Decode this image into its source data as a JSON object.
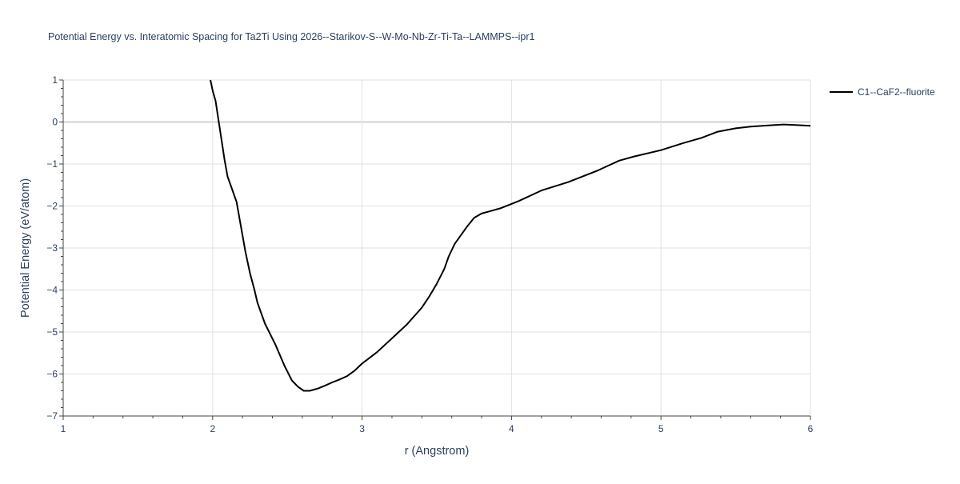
{
  "chart_data": {
    "type": "line",
    "title": "Potential Energy vs. Interatomic Spacing for Ta2Ti Using 2026--Starikov-S--W-Mo-Nb-Zr-Ti-Ta--LAMMPS--ipr1",
    "xlabel": "r (Angstrom)",
    "ylabel": "Potential Energy (eV/atom)",
    "xlim": [
      1,
      6
    ],
    "ylim": [
      -7,
      1
    ],
    "x_ticks": [
      1,
      2,
      3,
      4,
      5,
      6
    ],
    "y_ticks": [
      1,
      0,
      -1,
      -2,
      -3,
      -4,
      -5,
      -6,
      -7
    ],
    "x_tick_labels": [
      "1",
      "2",
      "3",
      "4",
      "5",
      "6"
    ],
    "y_tick_labels": [
      "1",
      "0",
      "−1",
      "−2",
      "−3",
      "−4",
      "−5",
      "−6",
      "−7"
    ],
    "grid": true,
    "legend_position": "top-right",
    "series": [
      {
        "name": "C1--CaF2--fluorite",
        "color": "#000000",
        "points": [
          [
            1.985,
            1.0
          ],
          [
            2.0,
            0.75
          ],
          [
            2.02,
            0.5
          ],
          [
            2.05,
            -0.2
          ],
          [
            2.08,
            -0.9
          ],
          [
            2.1,
            -1.3
          ],
          [
            2.13,
            -1.6
          ],
          [
            2.16,
            -1.9
          ],
          [
            2.19,
            -2.5
          ],
          [
            2.22,
            -3.1
          ],
          [
            2.25,
            -3.6
          ],
          [
            2.28,
            -4.0
          ],
          [
            2.3,
            -4.3
          ],
          [
            2.35,
            -4.8
          ],
          [
            2.42,
            -5.3
          ],
          [
            2.48,
            -5.8
          ],
          [
            2.53,
            -6.15
          ],
          [
            2.57,
            -6.3
          ],
          [
            2.61,
            -6.4
          ],
          [
            2.65,
            -6.4
          ],
          [
            2.7,
            -6.35
          ],
          [
            2.75,
            -6.28
          ],
          [
            2.8,
            -6.2
          ],
          [
            2.85,
            -6.13
          ],
          [
            2.9,
            -6.05
          ],
          [
            2.95,
            -5.92
          ],
          [
            3.0,
            -5.75
          ],
          [
            3.1,
            -5.48
          ],
          [
            3.2,
            -5.15
          ],
          [
            3.3,
            -4.82
          ],
          [
            3.4,
            -4.42
          ],
          [
            3.45,
            -4.15
          ],
          [
            3.5,
            -3.85
          ],
          [
            3.55,
            -3.5
          ],
          [
            3.58,
            -3.2
          ],
          [
            3.62,
            -2.9
          ],
          [
            3.66,
            -2.7
          ],
          [
            3.7,
            -2.5
          ],
          [
            3.75,
            -2.28
          ],
          [
            3.8,
            -2.18
          ],
          [
            3.85,
            -2.13
          ],
          [
            3.93,
            -2.05
          ],
          [
            4.05,
            -1.88
          ],
          [
            4.2,
            -1.63
          ],
          [
            4.38,
            -1.43
          ],
          [
            4.58,
            -1.15
          ],
          [
            4.72,
            -0.92
          ],
          [
            4.82,
            -0.82
          ],
          [
            5.0,
            -0.67
          ],
          [
            5.15,
            -0.5
          ],
          [
            5.27,
            -0.38
          ],
          [
            5.38,
            -0.23
          ],
          [
            5.5,
            -0.15
          ],
          [
            5.6,
            -0.11
          ],
          [
            5.72,
            -0.08
          ],
          [
            5.82,
            -0.06
          ],
          [
            5.9,
            -0.07
          ],
          [
            6.0,
            -0.09
          ]
        ]
      }
    ]
  }
}
